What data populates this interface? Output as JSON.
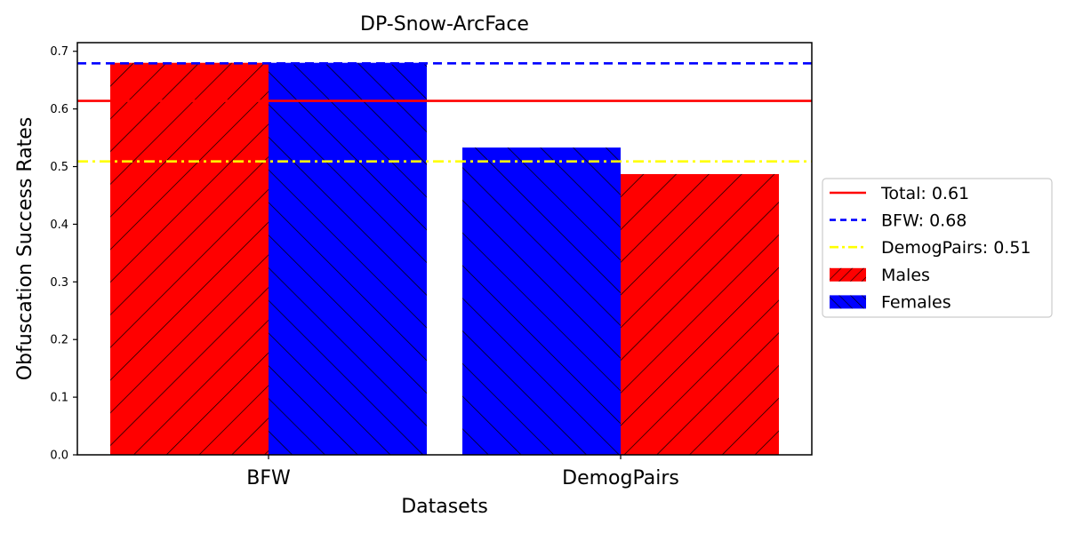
{
  "chart_data": {
    "type": "bar",
    "title": "DP-Snow-ArcFace",
    "xlabel": "Datasets",
    "ylabel": "Obfuscation Success Rates",
    "categories": [
      "BFW",
      "DemogPairs"
    ],
    "ylim": [
      0,
      0.715
    ],
    "yticks": [
      "0.0",
      "0.1",
      "0.2",
      "0.3",
      "0.4",
      "0.5",
      "0.6",
      "0.7"
    ],
    "grid": false,
    "legend_position": "right",
    "bars": [
      {
        "category": "BFW",
        "series": "Males",
        "value": 0.68,
        "color": "#ff0000",
        "hatch": "/"
      },
      {
        "category": "BFW",
        "series": "Females",
        "value": 0.68,
        "color": "#0000ff",
        "hatch": "\\"
      },
      {
        "category": "DemogPairs",
        "series": "Females",
        "value": 0.533,
        "color": "#0000ff",
        "hatch": "\\"
      },
      {
        "category": "DemogPairs",
        "series": "Males",
        "value": 0.487,
        "color": "#ff0000",
        "hatch": "/"
      }
    ],
    "reference_lines": [
      {
        "label": "Total: 0.61",
        "value": 0.614,
        "color": "#ff0000",
        "style": "solid"
      },
      {
        "label": "BFW: 0.68",
        "value": 0.679,
        "color": "#0000ff",
        "style": "dashed"
      },
      {
        "label": "DemogPairs: 0.51",
        "value": 0.509,
        "color": "#ffff00",
        "style": "dashdot"
      }
    ],
    "legend": [
      {
        "label": "Total: 0.61",
        "kind": "line",
        "color": "#ff0000",
        "style": "solid"
      },
      {
        "label": "BFW: 0.68",
        "kind": "line",
        "color": "#0000ff",
        "style": "dashed"
      },
      {
        "label": "DemogPairs: 0.51",
        "kind": "line",
        "color": "#ffff00",
        "style": "dashdot"
      },
      {
        "label": "Males",
        "kind": "patch",
        "color": "#ff0000",
        "hatch": "/"
      },
      {
        "label": "Females",
        "kind": "patch",
        "color": "#0000ff",
        "hatch": "\\"
      }
    ]
  }
}
